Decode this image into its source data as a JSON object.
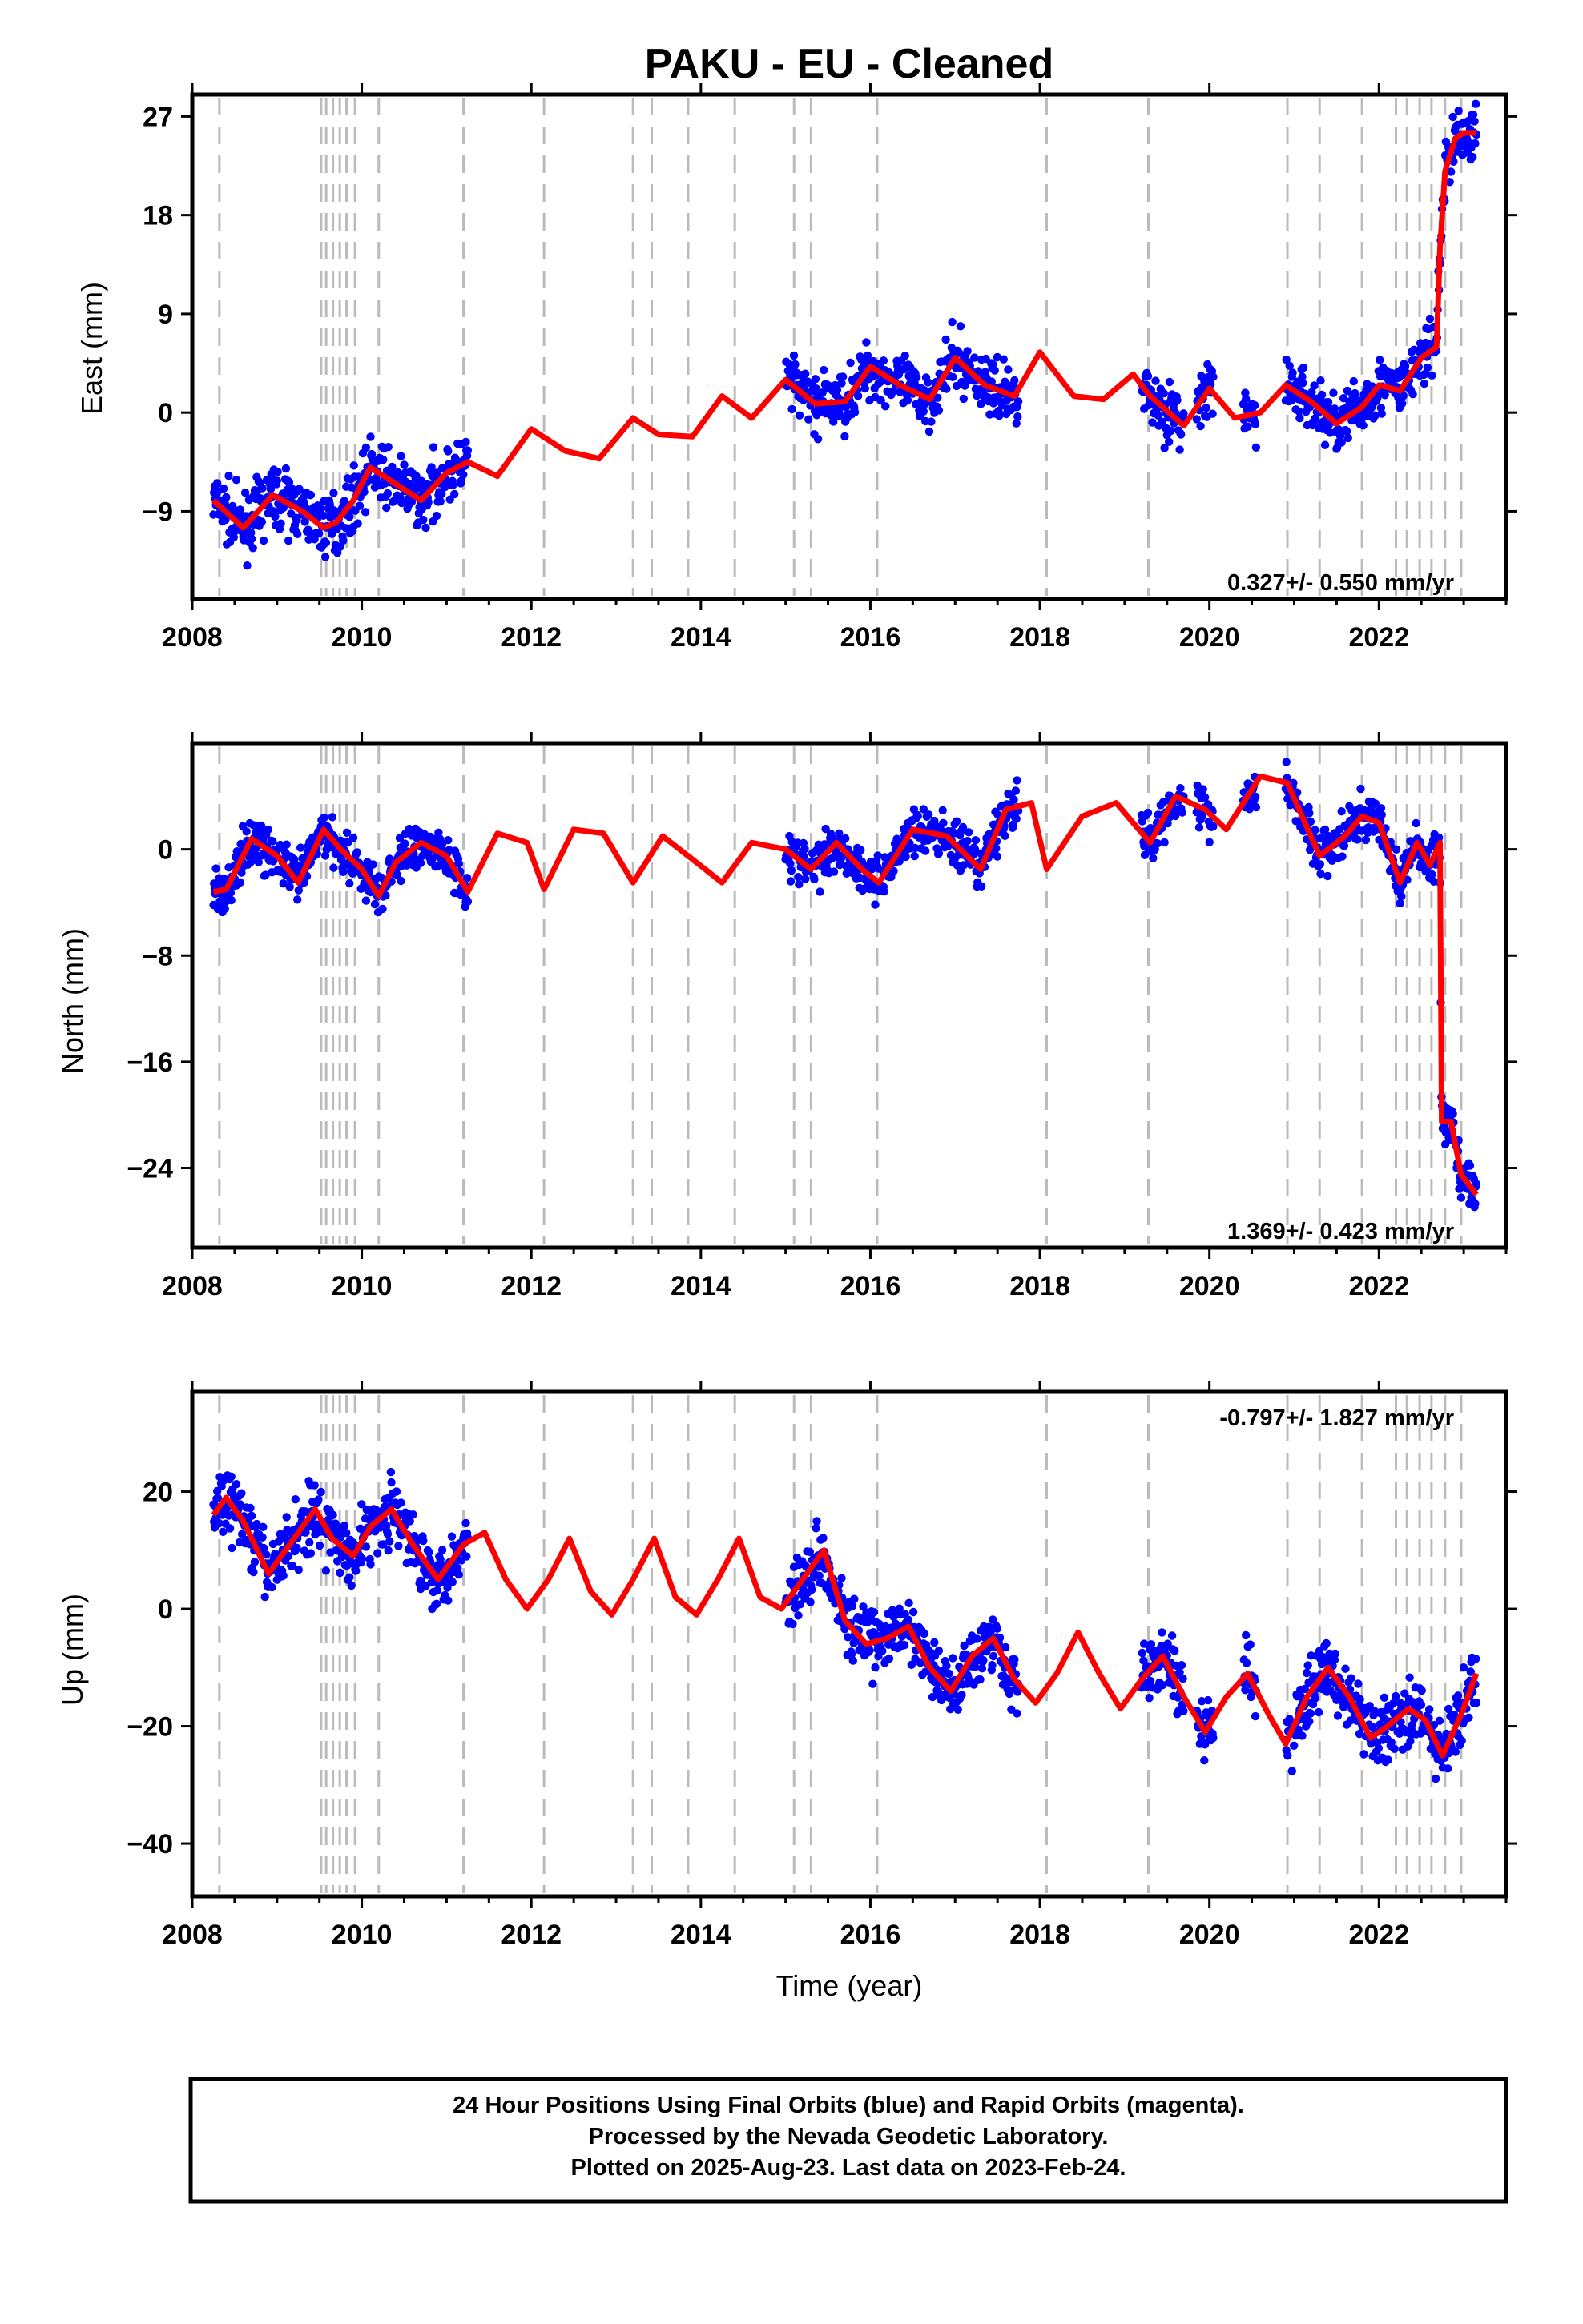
{
  "title": "PAKU  - EU - Cleaned",
  "xlabel": "Time (year)",
  "footer": {
    "line1": "24 Hour Positions Using Final Orbits (blue) and Rapid Orbits (magenta).",
    "line2": "Processed by the Nevada Geodetic Laboratory.",
    "line3": "Plotted on 2025-Aug-23. Last data on 2023-Feb-24."
  },
  "colors": {
    "data": "#0000ff",
    "model": "#ff0000",
    "events": "#bbbbbb",
    "axis": "#000000"
  },
  "chart_data": [
    {
      "type": "scatter",
      "name": "east",
      "ylabel": "East (mm)",
      "xlim": [
        2008.0,
        2023.5
      ],
      "ylim": [
        -17,
        29
      ],
      "xticks": [
        2008,
        2010,
        2012,
        2014,
        2016,
        2018,
        2020,
        2022
      ],
      "yticks": [
        27,
        18,
        9,
        0,
        -9
      ],
      "rate_label": "0.327+/- 0.550 mm/yr",
      "rate_position": "bottom-right",
      "grid": false,
      "event_lines": [
        2008.32,
        2009.52,
        2009.58,
        2009.66,
        2009.74,
        2009.82,
        2009.92,
        2010.2,
        2011.2,
        2012.15,
        2013.2,
        2013.42,
        2013.85,
        2014.4,
        2015.1,
        2015.3,
        2016.08,
        2018.08,
        2019.28,
        2020.92,
        2021.3,
        2021.8,
        2022.2,
        2022.33,
        2022.48,
        2022.62,
        2022.78,
        2022.97
      ],
      "data_segments": [
        [
          2008.25,
          2011.25
        ],
        [
          2015.0,
          2017.75
        ],
        [
          2019.2,
          2019.7
        ],
        [
          2019.85,
          2020.05
        ],
        [
          2020.4,
          2020.55
        ],
        [
          2020.9,
          2023.15
        ]
      ],
      "series": [
        {
          "name": "Final Orbits",
          "values_summary": "blue daily positions, scatter about model ±2.5 mm"
        },
        {
          "name": "model",
          "x": [
            2008.25,
            2008.6,
            2008.95,
            2009.3,
            2009.55,
            2009.7,
            2009.9,
            2010.1,
            2010.4,
            2010.7,
            2011.0,
            2011.25,
            2011.6,
            2012.0,
            2012.4,
            2012.8,
            2013.2,
            2013.5,
            2013.9,
            2014.25,
            2014.6,
            2015.0,
            2015.35,
            2015.7,
            2016.0,
            2016.35,
            2016.7,
            2017.0,
            2017.35,
            2017.7,
            2018.0,
            2018.4,
            2018.75,
            2019.1,
            2019.3,
            2019.7,
            2020.0,
            2020.3,
            2020.6,
            2020.9,
            2021.2,
            2021.5,
            2021.8,
            2022.0,
            2022.25,
            2022.5,
            2022.68,
            2022.72,
            2022.78,
            2022.9,
            2023.0,
            2023.15
          ],
          "y": [
            -8,
            -10.5,
            -7.5,
            -9,
            -10.5,
            -10,
            -8,
            -5,
            -6.5,
            -8,
            -5.5,
            -4.5,
            -5.8,
            -1.5,
            -3.5,
            -4.2,
            -0.5,
            -2,
            -2.2,
            1.5,
            -0.5,
            3,
            0.8,
            1,
            4.2,
            2.5,
            1.2,
            5,
            2.5,
            1.5,
            5.5,
            1.5,
            1.2,
            3.5,
            1.5,
            -1.2,
            2.2,
            -0.5,
            0,
            2.5,
            1,
            -1,
            0.5,
            2.5,
            2,
            5,
            6,
            15,
            22,
            25,
            25.5,
            25.5
          ]
        }
      ]
    },
    {
      "type": "scatter",
      "name": "north",
      "ylabel": "North (mm)",
      "xlim": [
        2008.0,
        2023.5
      ],
      "ylim": [
        -30,
        8
      ],
      "xticks": [
        2008,
        2010,
        2012,
        2014,
        2016,
        2018,
        2020,
        2022
      ],
      "yticks": [
        0,
        -8,
        -16,
        -24
      ],
      "rate_label": "1.369+/- 0.423 mm/yr",
      "rate_position": "bottom-right",
      "grid": false,
      "event_lines": [
        2008.32,
        2009.52,
        2009.58,
        2009.66,
        2009.74,
        2009.82,
        2009.92,
        2010.2,
        2011.2,
        2012.15,
        2013.2,
        2013.42,
        2013.85,
        2014.4,
        2015.1,
        2015.3,
        2016.08,
        2018.08,
        2019.28,
        2020.92,
        2021.3,
        2021.8,
        2022.2,
        2022.33,
        2022.48,
        2022.62,
        2022.78,
        2022.97
      ],
      "data_segments": [
        [
          2008.25,
          2011.25
        ],
        [
          2015.0,
          2017.75
        ],
        [
          2019.2,
          2019.7
        ],
        [
          2019.85,
          2020.05
        ],
        [
          2020.4,
          2020.55
        ],
        [
          2020.9,
          2023.15
        ]
      ],
      "series": [
        {
          "name": "Final Orbits",
          "values_summary": "blue daily positions, scatter about model ±1.5 mm"
        },
        {
          "name": "model",
          "x": [
            2008.25,
            2008.4,
            2008.7,
            2009.0,
            2009.25,
            2009.55,
            2009.75,
            2010.0,
            2010.2,
            2010.4,
            2010.7,
            2011.0,
            2011.25,
            2011.6,
            2011.95,
            2012.15,
            2012.5,
            2012.85,
            2013.2,
            2013.55,
            2013.85,
            2014.25,
            2014.6,
            2015.0,
            2015.3,
            2015.6,
            2015.9,
            2016.1,
            2016.5,
            2016.9,
            2017.3,
            2017.6,
            2017.9,
            2018.08,
            2018.5,
            2018.9,
            2019.3,
            2019.6,
            2019.95,
            2020.2,
            2020.6,
            2020.92,
            2021.3,
            2021.6,
            2021.8,
            2022.0,
            2022.25,
            2022.45,
            2022.6,
            2022.72,
            2022.74,
            2022.85,
            2022.97,
            2023.15
          ],
          "y": [
            -3.2,
            -3,
            0.8,
            -0.5,
            -2.5,
            1.5,
            0,
            -1.5,
            -3.5,
            -1,
            0.5,
            -0.5,
            -3.2,
            1.2,
            0.5,
            -3,
            1.5,
            1.2,
            -2.5,
            1,
            -0.5,
            -2.5,
            0.5,
            0,
            -1.5,
            0.5,
            -1.5,
            -2.5,
            1.5,
            1,
            -1.5,
            3,
            3.5,
            -1.5,
            2.5,
            3.5,
            0.5,
            4,
            3,
            1.5,
            5.5,
            5,
            -0.5,
            1,
            2.5,
            2,
            -2.5,
            0.5,
            -1.2,
            0.5,
            -20.5,
            -20.5,
            -24.5,
            -26
          ]
        }
      ]
    },
    {
      "type": "scatter",
      "name": "up",
      "ylabel": "Up (mm)",
      "xlim": [
        2008.0,
        2023.5
      ],
      "ylim": [
        -49,
        37
      ],
      "xticks": [
        2008,
        2010,
        2012,
        2014,
        2016,
        2018,
        2020,
        2022
      ],
      "yticks": [
        20,
        0,
        -20,
        -40
      ],
      "rate_label": "-0.797+/- 1.827 mm/yr",
      "rate_position": "top-right",
      "grid": false,
      "event_lines": [
        2008.32,
        2009.52,
        2009.58,
        2009.66,
        2009.74,
        2009.82,
        2009.92,
        2010.2,
        2011.2,
        2012.15,
        2013.2,
        2013.42,
        2013.85,
        2014.4,
        2015.1,
        2015.3,
        2016.08,
        2018.08,
        2019.28,
        2020.92,
        2021.3,
        2021.8,
        2022.2,
        2022.33,
        2022.48,
        2022.62,
        2022.78,
        2022.97
      ],
      "data_segments": [
        [
          2008.25,
          2011.25
        ],
        [
          2015.0,
          2017.75
        ],
        [
          2019.2,
          2019.7
        ],
        [
          2019.85,
          2020.05
        ],
        [
          2020.4,
          2020.55
        ],
        [
          2020.9,
          2023.15
        ]
      ],
      "series": [
        {
          "name": "Final Orbits",
          "values_summary": "blue daily positions, scatter about model ±5 mm"
        },
        {
          "name": "model",
          "x": [
            2008.25,
            2008.4,
            2008.6,
            2008.9,
            2009.2,
            2009.45,
            2009.65,
            2009.9,
            2010.1,
            2010.35,
            2010.6,
            2010.9,
            2011.2,
            2011.45,
            2011.7,
            2011.95,
            2012.2,
            2012.45,
            2012.7,
            2012.95,
            2013.2,
            2013.45,
            2013.7,
            2013.95,
            2014.2,
            2014.45,
            2014.7,
            2014.95,
            2015.2,
            2015.45,
            2015.7,
            2015.95,
            2016.2,
            2016.45,
            2016.7,
            2016.95,
            2017.2,
            2017.45,
            2017.7,
            2017.95,
            2018.2,
            2018.45,
            2018.7,
            2018.95,
            2019.2,
            2019.45,
            2019.7,
            2019.95,
            2020.2,
            2020.45,
            2020.7,
            2020.9,
            2021.15,
            2021.4,
            2021.65,
            2021.9,
            2022.1,
            2022.35,
            2022.55,
            2022.75,
            2022.97,
            2023.15
          ],
          "y": [
            16,
            19,
            15,
            6,
            12,
            17,
            12,
            9,
            14,
            17,
            11,
            5,
            11,
            13,
            5,
            0,
            5,
            12,
            3,
            -1,
            5,
            12,
            2,
            -1,
            5,
            12,
            2,
            0,
            5,
            10,
            -2,
            -6,
            -5,
            -3,
            -10,
            -14,
            -8,
            -5,
            -12,
            -16,
            -11,
            -4,
            -11,
            -17,
            -12,
            -8,
            -15,
            -21,
            -15,
            -11,
            -18,
            -23,
            -15,
            -10,
            -15,
            -22,
            -20,
            -17,
            -19,
            -25,
            -18,
            -11
          ]
        }
      ]
    }
  ]
}
